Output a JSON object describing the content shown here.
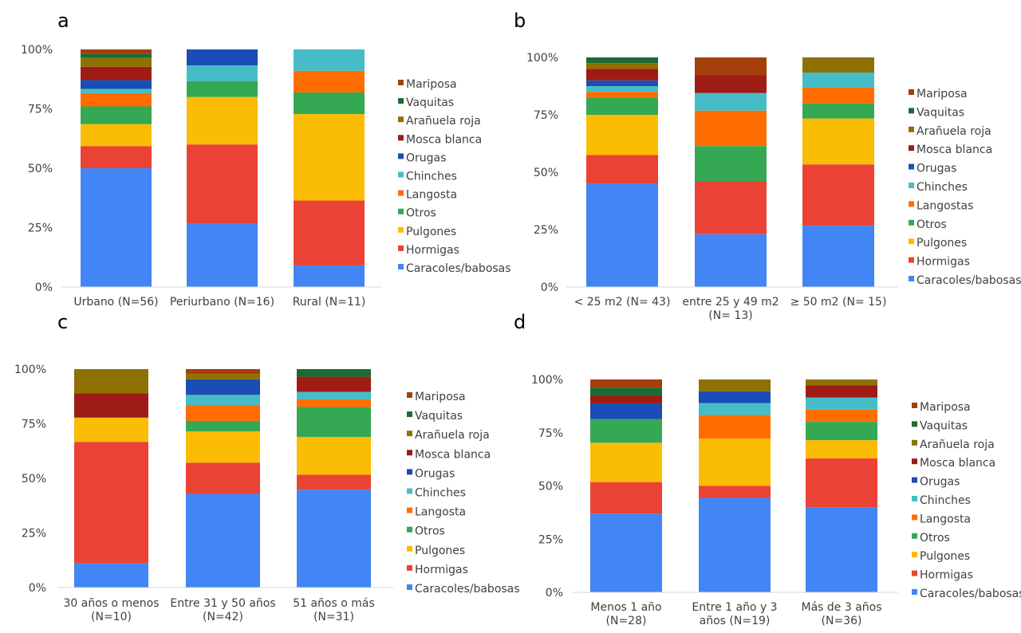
{
  "chart_data": [
    {
      "type": "bar",
      "stacked": true,
      "panel_label": "a",
      "categories": [
        "Urbano (N=56)",
        "Periurbano (N=16)",
        "Rural (N=11)"
      ],
      "yticks": [
        "0%",
        "25%",
        "50%",
        "75%",
        "100%"
      ],
      "ylim": [
        0,
        100
      ],
      "series": [
        {
          "name": "Caracoles/babosas",
          "values": [
            50.0,
            26.7,
            9.1
          ]
        },
        {
          "name": "Hormigas",
          "values": [
            9.3,
            33.3,
            27.3
          ]
        },
        {
          "name": "Pulgones",
          "values": [
            9.3,
            20.0,
            36.4
          ]
        },
        {
          "name": "Otros",
          "values": [
            7.4,
            6.7,
            9.1
          ]
        },
        {
          "name": "Langosta",
          "values": [
            5.6,
            0.0,
            9.1
          ]
        },
        {
          "name": "Chinches",
          "values": [
            1.8,
            6.6,
            9.0
          ]
        },
        {
          "name": "Orugas",
          "values": [
            3.7,
            6.7,
            0.0
          ]
        },
        {
          "name": "Mosca blanca",
          "values": [
            5.6,
            0.0,
            0.0
          ]
        },
        {
          "name": "Arañuela roja",
          "values": [
            3.7,
            0.0,
            0.0
          ]
        },
        {
          "name": "Vaquitas",
          "values": [
            1.8,
            0.0,
            0.0
          ]
        },
        {
          "name": "Mariposa",
          "values": [
            1.8,
            0.0,
            0.0
          ]
        }
      ]
    },
    {
      "type": "bar",
      "stacked": true,
      "panel_label": "b",
      "categories": [
        "< 25 m2 (N= 43)",
        "entre 25 y 49 m2\n(N= 13)",
        "≥ 50 m2 (N= 15)"
      ],
      "yticks": [
        "0%",
        "25%",
        "50%",
        "75%",
        "100%"
      ],
      "ylim": [
        0,
        100
      ],
      "series": [
        {
          "name": "Caracoles/babosas",
          "values": [
            45.0,
            23.0,
            26.7
          ]
        },
        {
          "name": "Hormigas",
          "values": [
            12.5,
            23.0,
            26.7
          ]
        },
        {
          "name": "Pulgones",
          "values": [
            17.5,
            0.0,
            20.0
          ]
        },
        {
          "name": "Otros",
          "values": [
            7.5,
            15.4,
            6.7
          ]
        },
        {
          "name": "Langostas",
          "values": [
            2.5,
            15.4,
            6.7
          ]
        },
        {
          "name": "Chinches",
          "values": [
            2.5,
            7.7,
            6.6
          ]
        },
        {
          "name": "Orugas",
          "values": [
            2.5,
            0.0,
            0.0
          ]
        },
        {
          "name": "Mosca blanca",
          "values": [
            5.0,
            7.7,
            0.0
          ]
        },
        {
          "name": "Arañuela roja",
          "values": [
            2.5,
            0.0,
            6.6
          ]
        },
        {
          "name": "Vaquitas",
          "values": [
            2.5,
            0.0,
            0.0
          ]
        },
        {
          "name": "Mariposa",
          "values": [
            0.0,
            7.8,
            0.0
          ]
        }
      ]
    },
    {
      "type": "bar",
      "stacked": true,
      "panel_label": "c",
      "categories": [
        "30 años o menos\n(N=10)",
        "Entre 31 y 50 años\n(N=42)",
        "51 años o más\n(N=31)"
      ],
      "yticks": [
        "0%",
        "25%",
        "50%",
        "75%",
        "100%"
      ],
      "ylim": [
        0,
        100
      ],
      "series": [
        {
          "name": "Caracoles/babosas",
          "values": [
            11.1,
            42.9,
            44.8
          ]
        },
        {
          "name": "Hormigas",
          "values": [
            55.6,
            14.3,
            6.9
          ]
        },
        {
          "name": "Pulgones",
          "values": [
            11.1,
            14.3,
            17.2
          ]
        },
        {
          "name": "Otros",
          "values": [
            0.0,
            4.8,
            13.8
          ]
        },
        {
          "name": "Langosta",
          "values": [
            0.0,
            7.1,
            3.4
          ]
        },
        {
          "name": "Chinches",
          "values": [
            0.0,
            4.8,
            3.5
          ]
        },
        {
          "name": "Orugas",
          "values": [
            0.0,
            7.1,
            0.0
          ]
        },
        {
          "name": "Mosca blanca",
          "values": [
            11.1,
            0.0,
            6.9
          ]
        },
        {
          "name": "Arañuela roja",
          "values": [
            11.1,
            2.4,
            0.0
          ]
        },
        {
          "name": "Vaquitas",
          "values": [
            0.0,
            0.0,
            3.5
          ]
        },
        {
          "name": "Mariposa",
          "values": [
            0.0,
            2.3,
            0.0
          ]
        }
      ]
    },
    {
      "type": "bar",
      "stacked": true,
      "panel_label": "d",
      "categories": [
        "Menos 1 año\n(N=28)",
        "Entre 1 año y 3\naños (N=19)",
        "Más de 3 años\n(N=36)"
      ],
      "yticks": [
        "0%",
        "25%",
        "50%",
        "75%",
        "100%"
      ],
      "ylim": [
        0,
        100
      ],
      "series": [
        {
          "name": "Caracoles/babosas",
          "values": [
            37.0,
            44.4,
            40.0
          ]
        },
        {
          "name": "Hormigas",
          "values": [
            14.8,
            5.6,
            22.9
          ]
        },
        {
          "name": "Pulgones",
          "values": [
            18.5,
            22.2,
            8.6
          ]
        },
        {
          "name": "Otros",
          "values": [
            11.1,
            0.0,
            8.6
          ]
        },
        {
          "name": "Langosta",
          "values": [
            0.0,
            11.1,
            5.7
          ]
        },
        {
          "name": "Chinches",
          "values": [
            0.0,
            5.6,
            5.7
          ]
        },
        {
          "name": "Orugas",
          "values": [
            7.4,
            5.6,
            0.0
          ]
        },
        {
          "name": "Mosca blanca",
          "values": [
            3.7,
            0.0,
            5.7
          ]
        },
        {
          "name": "Arañuela roja",
          "values": [
            0.0,
            5.5,
            2.8
          ]
        },
        {
          "name": "Vaquitas",
          "values": [
            3.7,
            0.0,
            0.0
          ]
        },
        {
          "name": "Mariposa",
          "values": [
            3.8,
            0.0,
            0.0
          ]
        }
      ]
    }
  ],
  "series_colors": [
    "#4285F4",
    "#EA4335",
    "#FBBC04",
    "#34A853",
    "#FF6D01",
    "#46BDC6",
    "#1A4DB5",
    "#9E1B16",
    "#8F7002",
    "#1D6B34",
    "#A23F0A"
  ],
  "axis_color": "#d9d9d9",
  "text_color": "#404040"
}
